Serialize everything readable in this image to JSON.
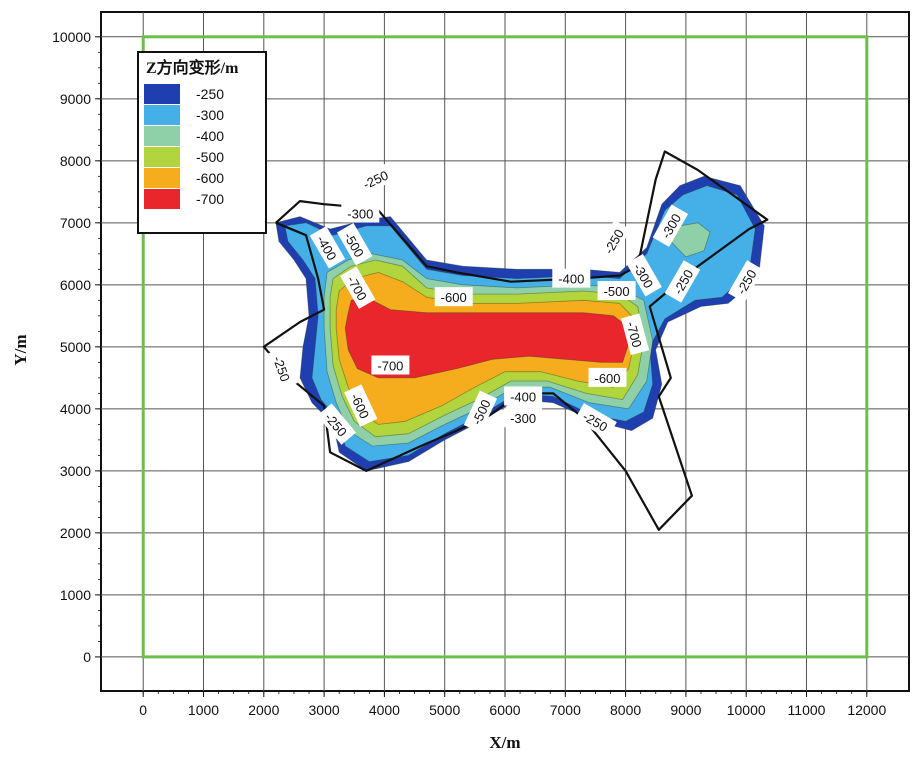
{
  "chart_data": {
    "type": "contour",
    "xlabel": "X/m",
    "ylabel": "Y/m",
    "xlim": [
      -700,
      12700
    ],
    "ylim": [
      -550,
      10400
    ],
    "x_ticks": [
      "0",
      "1000",
      "2000",
      "3000",
      "4000",
      "5000",
      "6000",
      "7000",
      "8000",
      "9000",
      "10000",
      "11000",
      "12000"
    ],
    "y_ticks": [
      "0",
      "1000",
      "2000",
      "3000",
      "4000",
      "5000",
      "6000",
      "7000",
      "8000",
      "9000",
      "10000"
    ],
    "grid": true,
    "legend": {
      "title": "Z方向变形/m",
      "placement": "top-left",
      "entries": [
        {
          "label": "-250",
          "color": "#1f3fb0"
        },
        {
          "label": "-300",
          "color": "#45b0e8"
        },
        {
          "label": "-400",
          "color": "#8fd0a8"
        },
        {
          "label": "-500",
          "color": "#b2d43c"
        },
        {
          "label": "-600",
          "color": "#f6ad1d"
        },
        {
          "label": "-700",
          "color": "#e8262c"
        }
      ]
    },
    "boundary_rect": {
      "x": [
        0,
        12000
      ],
      "y": [
        0,
        10000
      ],
      "color": "#6cc04a"
    },
    "outline_color": "#111111",
    "outline": [
      [
        2200,
        7000
      ],
      [
        2600,
        7350
      ],
      [
        3000,
        7300
      ],
      [
        3600,
        7250
      ],
      [
        3900,
        7200
      ],
      [
        4700,
        6300
      ],
      [
        5200,
        6200
      ],
      [
        6100,
        6050
      ],
      [
        7200,
        6100
      ],
      [
        7900,
        6150
      ],
      [
        8200,
        6300
      ],
      [
        8500,
        7700
      ],
      [
        8650,
        8150
      ],
      [
        9200,
        7850
      ],
      [
        10350,
        7050
      ],
      [
        10050,
        6900
      ],
      [
        9200,
        6300
      ],
      [
        8950,
        6100
      ],
      [
        8400,
        5650
      ],
      [
        8750,
        4500
      ],
      [
        8550,
        4200
      ],
      [
        9100,
        2600
      ],
      [
        8550,
        2050
      ],
      [
        8000,
        3000
      ],
      [
        7300,
        3850
      ],
      [
        6800,
        4250
      ],
      [
        6250,
        4250
      ],
      [
        5750,
        3900
      ],
      [
        5200,
        3650
      ],
      [
        4600,
        3400
      ],
      [
        3700,
        3000
      ],
      [
        3100,
        3300
      ],
      [
        3000,
        4050
      ],
      [
        2500,
        4450
      ],
      [
        2000,
        5000
      ],
      [
        2600,
        5400
      ],
      [
        3000,
        5600
      ],
      [
        2900,
        6100
      ],
      [
        2700,
        6800
      ],
      [
        2200,
        7000
      ]
    ],
    "fill_levels": [
      {
        "level": "-250",
        "color": "#1f3fb0",
        "polygons": [
          [
            [
              2200,
              7000
            ],
            [
              2600,
              7100
            ],
            [
              3100,
              6900
            ],
            [
              3700,
              7050
            ],
            [
              4100,
              7100
            ],
            [
              4700,
              6400
            ],
            [
              5300,
              6300
            ],
            [
              6200,
              6250
            ],
            [
              7300,
              6250
            ],
            [
              7900,
              6200
            ],
            [
              8350,
              6600
            ],
            [
              8600,
              7300
            ],
            [
              8900,
              7600
            ],
            [
              9300,
              7750
            ],
            [
              9900,
              7600
            ],
            [
              10300,
              6950
            ],
            [
              10200,
              6100
            ],
            [
              9700,
              5700
            ],
            [
              9250,
              5650
            ],
            [
              8700,
              5400
            ],
            [
              8500,
              4950
            ],
            [
              8600,
              4400
            ],
            [
              8450,
              3850
            ],
            [
              8100,
              3650
            ],
            [
              7500,
              3800
            ],
            [
              6800,
              4100
            ],
            [
              6200,
              4150
            ],
            [
              5600,
              3800
            ],
            [
              5000,
              3500
            ],
            [
              4400,
              3150
            ],
            [
              3700,
              3000
            ],
            [
              3250,
              3300
            ],
            [
              3150,
              3750
            ],
            [
              2800,
              4100
            ],
            [
              2600,
              4500
            ],
            [
              2650,
              5000
            ],
            [
              2750,
              5500
            ],
            [
              2700,
              6100
            ],
            [
              2500,
              6400
            ],
            [
              2250,
              6700
            ],
            [
              2200,
              7000
            ]
          ]
        ]
      },
      {
        "level": "-300",
        "color": "#45b0e8",
        "polygons": [
          [
            [
              2350,
              6950
            ],
            [
              2700,
              7000
            ],
            [
              3150,
              6800
            ],
            [
              3700,
              6950
            ],
            [
              4100,
              6950
            ],
            [
              4700,
              6250
            ],
            [
              5300,
              6150
            ],
            [
              6200,
              6100
            ],
            [
              7300,
              6150
            ],
            [
              7900,
              6100
            ],
            [
              8350,
              6500
            ],
            [
              8650,
              7200
            ],
            [
              8950,
              7450
            ],
            [
              9350,
              7600
            ],
            [
              9850,
              7450
            ],
            [
              10150,
              6900
            ],
            [
              10050,
              6200
            ],
            [
              9600,
              5800
            ],
            [
              9150,
              5750
            ],
            [
              8650,
              5450
            ],
            [
              8400,
              5000
            ],
            [
              8450,
              4400
            ],
            [
              8300,
              3950
            ],
            [
              8000,
              3800
            ],
            [
              7450,
              3900
            ],
            [
              6800,
              4200
            ],
            [
              6200,
              4250
            ],
            [
              5600,
              3900
            ],
            [
              5000,
              3600
            ],
            [
              4400,
              3250
            ],
            [
              3750,
              3150
            ],
            [
              3350,
              3400
            ],
            [
              3250,
              3800
            ],
            [
              2950,
              4150
            ],
            [
              2800,
              4500
            ],
            [
              2850,
              5000
            ],
            [
              2900,
              5500
            ],
            [
              2850,
              6100
            ],
            [
              2650,
              6400
            ],
            [
              2400,
              6700
            ],
            [
              2350,
              6950
            ]
          ]
        ]
      },
      {
        "level": "-400",
        "color": "#8fd0a8",
        "polygons": [
          [
            [
              3050,
              6200
            ],
            [
              3400,
              6400
            ],
            [
              3800,
              6500
            ],
            [
              4300,
              6400
            ],
            [
              4700,
              6100
            ],
            [
              5300,
              6000
            ],
            [
              6200,
              5950
            ],
            [
              7300,
              6000
            ],
            [
              7900,
              5950
            ],
            [
              8300,
              5750
            ],
            [
              8450,
              5100
            ],
            [
              8350,
              4450
            ],
            [
              8050,
              4000
            ],
            [
              7400,
              4100
            ],
            [
              6750,
              4350
            ],
            [
              6150,
              4350
            ],
            [
              5550,
              4000
            ],
            [
              5000,
              3750
            ],
            [
              4400,
              3450
            ],
            [
              3800,
              3400
            ],
            [
              3400,
              3650
            ],
            [
              3200,
              4100
            ],
            [
              3050,
              4600
            ],
            [
              3000,
              5300
            ],
            [
              3000,
              5800
            ],
            [
              3050,
              6200
            ]
          ],
          [
            [
              8750,
              6700
            ],
            [
              8900,
              6950
            ],
            [
              9200,
              7000
            ],
            [
              9400,
              6850
            ],
            [
              9300,
              6550
            ],
            [
              9000,
              6450
            ],
            [
              8750,
              6700
            ]
          ]
        ]
      },
      {
        "level": "-500",
        "color": "#b2d43c",
        "polygons": [
          [
            [
              3150,
              6100
            ],
            [
              3450,
              6300
            ],
            [
              3850,
              6400
            ],
            [
              4300,
              6300
            ],
            [
              4700,
              5950
            ],
            [
              5300,
              5850
            ],
            [
              6200,
              5850
            ],
            [
              7300,
              5900
            ],
            [
              7900,
              5850
            ],
            [
              8200,
              5650
            ],
            [
              8300,
              5100
            ],
            [
              8200,
              4550
            ],
            [
              7950,
              4150
            ],
            [
              7350,
              4250
            ],
            [
              6700,
              4450
            ],
            [
              6100,
              4450
            ],
            [
              5550,
              4150
            ],
            [
              5000,
              3900
            ],
            [
              4400,
              3600
            ],
            [
              3850,
              3550
            ],
            [
              3500,
              3800
            ],
            [
              3300,
              4200
            ],
            [
              3150,
              4700
            ],
            [
              3100,
              5300
            ],
            [
              3100,
              5800
            ],
            [
              3150,
              6100
            ]
          ]
        ]
      },
      {
        "level": "-600",
        "color": "#f6ad1d",
        "polygons": [
          [
            [
              3250,
              5900
            ],
            [
              3500,
              6100
            ],
            [
              3900,
              6200
            ],
            [
              4300,
              6050
            ],
            [
              4700,
              5800
            ],
            [
              5300,
              5700
            ],
            [
              6200,
              5700
            ],
            [
              7300,
              5750
            ],
            [
              7900,
              5700
            ],
            [
              8100,
              5500
            ],
            [
              8150,
              5100
            ],
            [
              8050,
              4650
            ],
            [
              7800,
              4350
            ],
            [
              7200,
              4450
            ],
            [
              6600,
              4600
            ],
            [
              6000,
              4600
            ],
            [
              5500,
              4350
            ],
            [
              4950,
              4050
            ],
            [
              4350,
              3800
            ],
            [
              3900,
              3750
            ],
            [
              3600,
              3950
            ],
            [
              3400,
              4350
            ],
            [
              3250,
              4800
            ],
            [
              3200,
              5300
            ],
            [
              3200,
              5600
            ],
            [
              3250,
              5900
            ]
          ]
        ]
      },
      {
        "level": "-700",
        "color": "#e8262c",
        "polygons": [
          [
            [
              3450,
              5750
            ],
            [
              3700,
              5800
            ],
            [
              4100,
              5600
            ],
            [
              4700,
              5550
            ],
            [
              5300,
              5550
            ],
            [
              6200,
              5550
            ],
            [
              7300,
              5550
            ],
            [
              7800,
              5500
            ],
            [
              8000,
              5350
            ],
            [
              8050,
              5050
            ],
            [
              7950,
              4750
            ],
            [
              7600,
              4750
            ],
            [
              7000,
              4800
            ],
            [
              6400,
              4850
            ],
            [
              5800,
              4800
            ],
            [
              5200,
              4650
            ],
            [
              4500,
              4500
            ],
            [
              3900,
              4500
            ],
            [
              3550,
              4650
            ],
            [
              3400,
              4950
            ],
            [
              3350,
              5300
            ],
            [
              3400,
              5550
            ],
            [
              3450,
              5750
            ]
          ]
        ]
      }
    ],
    "contour_labels": [
      {
        "text": "-250",
        "x": 3850,
        "y": 7700,
        "angle": 25
      },
      {
        "text": "-300",
        "x": 3600,
        "y": 7150,
        "angle": 0
      },
      {
        "text": "-400",
        "x": 3050,
        "y": 6600,
        "angle": -60
      },
      {
        "text": "-500",
        "x": 3500,
        "y": 6650,
        "angle": -60
      },
      {
        "text": "-700",
        "x": 3550,
        "y": 5950,
        "angle": -60
      },
      {
        "text": "-600",
        "x": 5150,
        "y": 5800,
        "angle": 0
      },
      {
        "text": "-700",
        "x": 4100,
        "y": 4700,
        "angle": 0
      },
      {
        "text": "-600",
        "x": 3600,
        "y": 4050,
        "angle": -65
      },
      {
        "text": "-250",
        "x": 2300,
        "y": 4650,
        "angle": -70
      },
      {
        "text": "-250",
        "x": 3200,
        "y": 3750,
        "angle": -50
      },
      {
        "text": "-500",
        "x": 5600,
        "y": 3950,
        "angle": 65
      },
      {
        "text": "-300",
        "x": 6300,
        "y": 3850,
        "angle": 0
      },
      {
        "text": "-250",
        "x": 7500,
        "y": 3800,
        "angle": -30
      },
      {
        "text": "-600",
        "x": 7700,
        "y": 4500,
        "angle": 0
      },
      {
        "text": "-700",
        "x": 8150,
        "y": 5200,
        "angle": -75
      },
      {
        "text": "-400",
        "x": 7100,
        "y": 6100,
        "angle": 0
      },
      {
        "text": "-500",
        "x": 7850,
        "y": 5900,
        "angle": 0
      },
      {
        "text": "-400",
        "x": 6300,
        "y": 4200,
        "angle": 0
      },
      {
        "text": "-250",
        "x": 7800,
        "y": 6700,
        "angle": 60
      },
      {
        "text": "-300",
        "x": 8300,
        "y": 6150,
        "angle": -60
      },
      {
        "text": "-300",
        "x": 8750,
        "y": 6950,
        "angle": 60
      },
      {
        "text": "-250",
        "x": 8950,
        "y": 6050,
        "angle": 60
      },
      {
        "text": "-250",
        "x": 10000,
        "y": 6050,
        "angle": 60
      }
    ]
  }
}
